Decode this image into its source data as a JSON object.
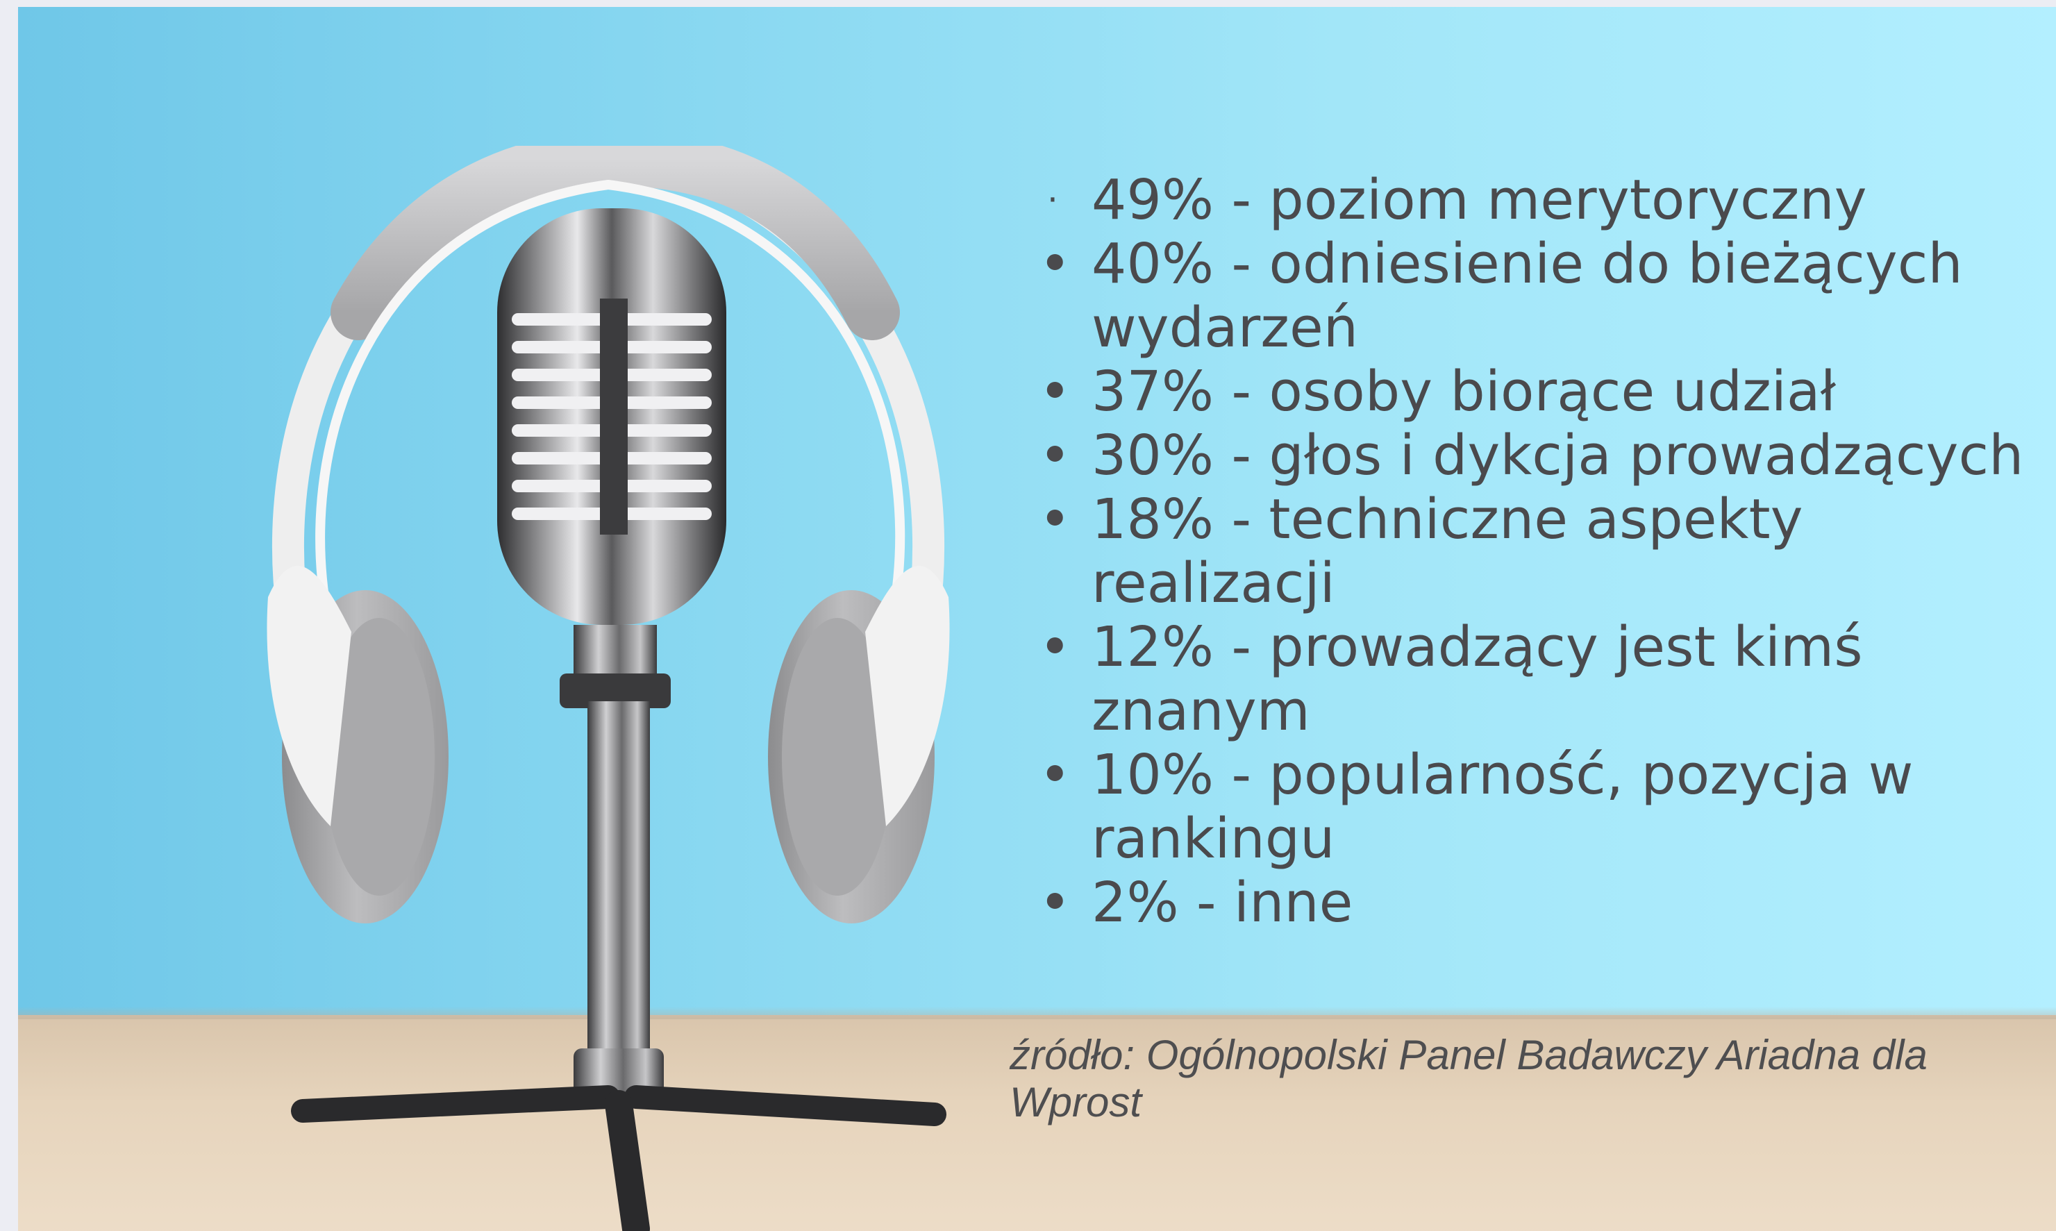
{
  "stats": [
    {
      "bullet": "·",
      "text": "49% - poziom merytoryczny"
    },
    {
      "bullet": "•",
      "text": "40% - odniesienie do bieżących wydarzeń"
    },
    {
      "bullet": "•",
      "text": "37% - osoby biorące udział"
    },
    {
      "bullet": "•",
      "text": "30% - głos i dykcja prowadzących"
    },
    {
      "bullet": "•",
      "text": "18% - techniczne aspekty realizacji"
    },
    {
      "bullet": "•",
      "text": "12% - prowadzący jest kimś znanym"
    },
    {
      "bullet": "•",
      "text": "10% - popularność, pozycja w rankingu"
    },
    {
      "bullet": "•",
      "text": "2% - inne"
    }
  ],
  "source": "źródło: Ogólnopolski Panel Badawczy Ariadna dla Wprost",
  "colors": {
    "background_left": "#6fc7e8",
    "background_right": "#b3efff",
    "desk": "#e6d4bc",
    "text": "#4a4a4d"
  }
}
